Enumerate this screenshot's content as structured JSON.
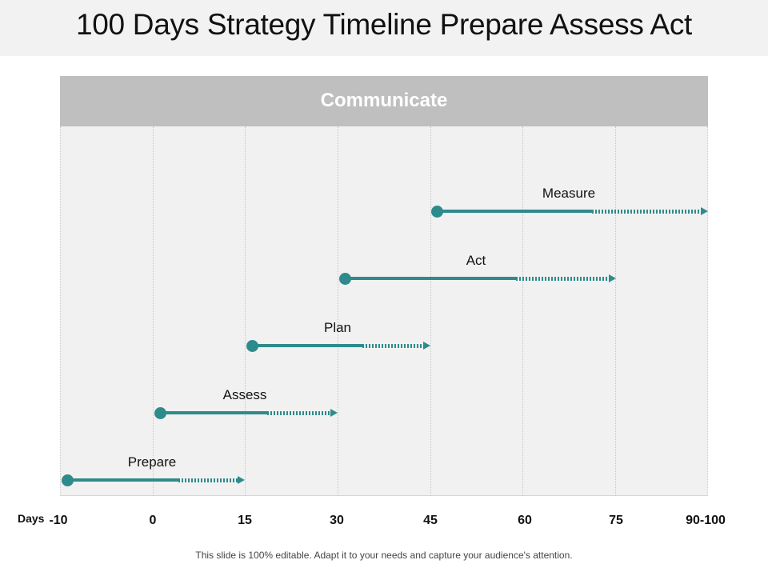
{
  "title": "100 Days Strategy Timeline Prepare Assess Act",
  "header": "Communicate",
  "axis": {
    "caption": "Days",
    "ticks": [
      "-10",
      "0",
      "15",
      "30",
      "45",
      "60",
      "75",
      "90-100"
    ]
  },
  "tasks": [
    {
      "label": "Prepare",
      "start": "-10",
      "end": "15"
    },
    {
      "label": "Assess",
      "start": "0",
      "end": "30"
    },
    {
      "label": "Plan",
      "start": "15",
      "end": "45"
    },
    {
      "label": "Act",
      "start": "30",
      "end": "75"
    },
    {
      "label": "Measure",
      "start": "45",
      "end": "90-100"
    }
  ],
  "footer": "This slide is 100% editable. Adapt it to your needs and capture your audience's attention.",
  "colors": {
    "accent": "#2e8b8b",
    "header_bar": "#bfbfbf",
    "grid_bg": "#f1f1f1"
  }
}
